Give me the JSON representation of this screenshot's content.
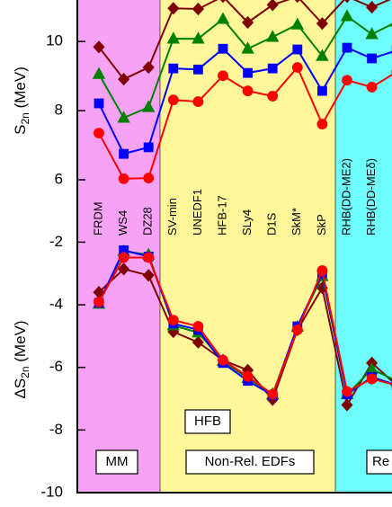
{
  "chart_data": [
    {
      "type": "line",
      "ylabel": "S",
      "ylabel_sub": "2n",
      "ylabel_suffix": " (MeV)",
      "categories": [
        "FRDM",
        "WS4",
        "DZ28",
        "SV-min",
        "UNEDF1",
        "HFB-17",
        "SLy4",
        "D1S",
        "SkM*",
        "SkP",
        "RHB(DD-ME2)",
        "RHB(DD-MEδ)",
        null
      ],
      "ylim": [
        4.83,
        11.2
      ],
      "yticks": [
        6,
        8,
        10
      ],
      "series": [
        {
          "color": "#800000",
          "marker": "diamond",
          "values": [
            9.84,
            8.91,
            9.25,
            10.96,
            10.94,
            11.3,
            10.55,
            11.06,
            11.3,
            10.52,
            11.3,
            10.99,
            11.3
          ]
        },
        {
          "color": "#008000",
          "marker": "triangle",
          "values": [
            9.06,
            7.79,
            8.1,
            10.08,
            10.08,
            10.65,
            9.79,
            10.13,
            10.49,
            9.58,
            10.73,
            10.21,
            10.57
          ]
        },
        {
          "color": "#0000ff",
          "marker": "square",
          "values": [
            8.21,
            6.75,
            6.94,
            9.22,
            9.19,
            9.79,
            9.09,
            9.22,
            9.77,
            8.57,
            9.82,
            9.51,
            9.74
          ]
        },
        {
          "color": "#ff0000",
          "marker": "circle",
          "values": [
            7.35,
            6.03,
            6.05,
            8.31,
            8.26,
            9.01,
            8.57,
            8.42,
            9.25,
            7.61,
            8.88,
            8.68,
            9.12
          ]
        }
      ]
    },
    {
      "type": "line",
      "ylabel": "ΔS",
      "ylabel_sub": "2n",
      "ylabel_suffix": " (MeV)",
      "ylim": [
        -10,
        -1.3
      ],
      "yticks": [
        -10,
        -8,
        -6,
        -4,
        -2
      ],
      "series": [
        {
          "color": "#800000",
          "marker": "diamond",
          "values": [
            -3.6,
            -2.86,
            -3.06,
            -4.86,
            -5.2,
            -5.77,
            -6.09,
            -7.03,
            -4.8,
            -3.46,
            -7.2,
            -5.86,
            -6.57
          ]
        },
        {
          "color": "#008000",
          "marker": "triangle",
          "values": [
            -3.97,
            -2.29,
            -2.4,
            -4.66,
            -4.89,
            -5.8,
            -6.34,
            -6.86,
            -4.71,
            -3.09,
            -6.86,
            -6.06,
            -6.43
          ]
        },
        {
          "color": "#0000ff",
          "marker": "square",
          "values": [
            -3.94,
            -2.26,
            -2.46,
            -4.6,
            -4.8,
            -5.86,
            -6.43,
            -6.89,
            -4.69,
            -3.0,
            -6.86,
            -6.31,
            -6.57
          ]
        },
        {
          "color": "#ff0000",
          "marker": "circle",
          "values": [
            -3.91,
            -2.49,
            -2.49,
            -4.49,
            -4.69,
            -5.77,
            -6.29,
            -6.86,
            -4.8,
            -2.91,
            -6.77,
            -6.37,
            -6.57
          ]
        }
      ],
      "annotations": [
        "HFB",
        "MM",
        "Non-Rel. EDFs",
        "Re"
      ]
    }
  ]
}
